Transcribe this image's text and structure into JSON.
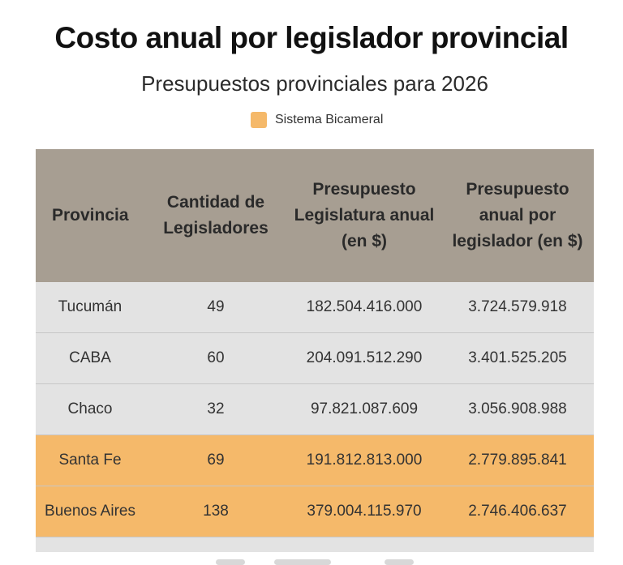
{
  "title": "Costo anual por legislador provincial",
  "subtitle": "Presupuestos provinciales para 2026",
  "legend": {
    "label": "Sistema Bicameral",
    "color": "#F5B96A"
  },
  "colors": {
    "header_bg": "#A79E92",
    "row_bg": "#E3E3E3",
    "highlight_bg": "#F5B96A"
  },
  "chart_data": {
    "type": "table",
    "title": "Costo anual por legislador provincial",
    "subtitle": "Presupuestos provinciales para 2026",
    "columns": [
      "Provincia",
      "Cantidad de Legisladores",
      "Presupuesto Legislatura anual (en $)",
      "Presupuesto anual por legislador (en $)"
    ],
    "rows": [
      {
        "provincia": "Tucumán",
        "legisladores": "49",
        "presupuesto": "182.504.416.000",
        "por_legislador": "3.724.579.918",
        "bicameral": false
      },
      {
        "provincia": "CABA",
        "legisladores": "60",
        "presupuesto": "204.091.512.290",
        "por_legislador": "3.401.525.205",
        "bicameral": false
      },
      {
        "provincia": "Chaco",
        "legisladores": "32",
        "presupuesto": "97.821.087.609",
        "por_legislador": "3.056.908.988",
        "bicameral": false
      },
      {
        "provincia": "Santa Fe",
        "legisladores": "69",
        "presupuesto": "191.812.813.000",
        "por_legislador": "2.779.895.841",
        "bicameral": true
      },
      {
        "provincia": "Buenos Aires",
        "legisladores": "138",
        "presupuesto": "379.004.115.970",
        "por_legislador": "2.746.406.637",
        "bicameral": true
      }
    ]
  }
}
